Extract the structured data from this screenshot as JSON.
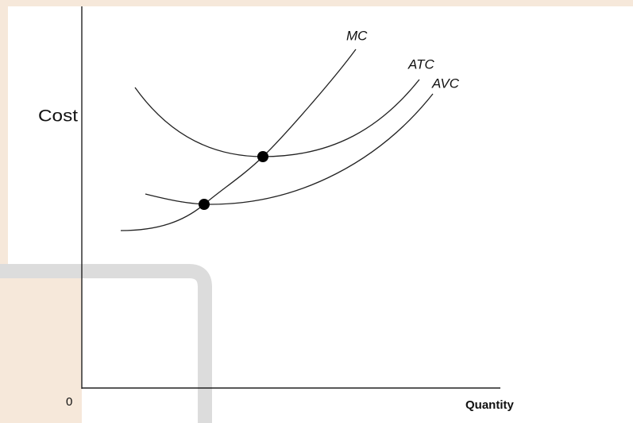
{
  "labels": {
    "mc": "MC",
    "atc": "ATC",
    "avc": "AVC"
  },
  "axes": {
    "y_label": "Cost",
    "x_label": "Quantity",
    "origin": "0"
  }
}
